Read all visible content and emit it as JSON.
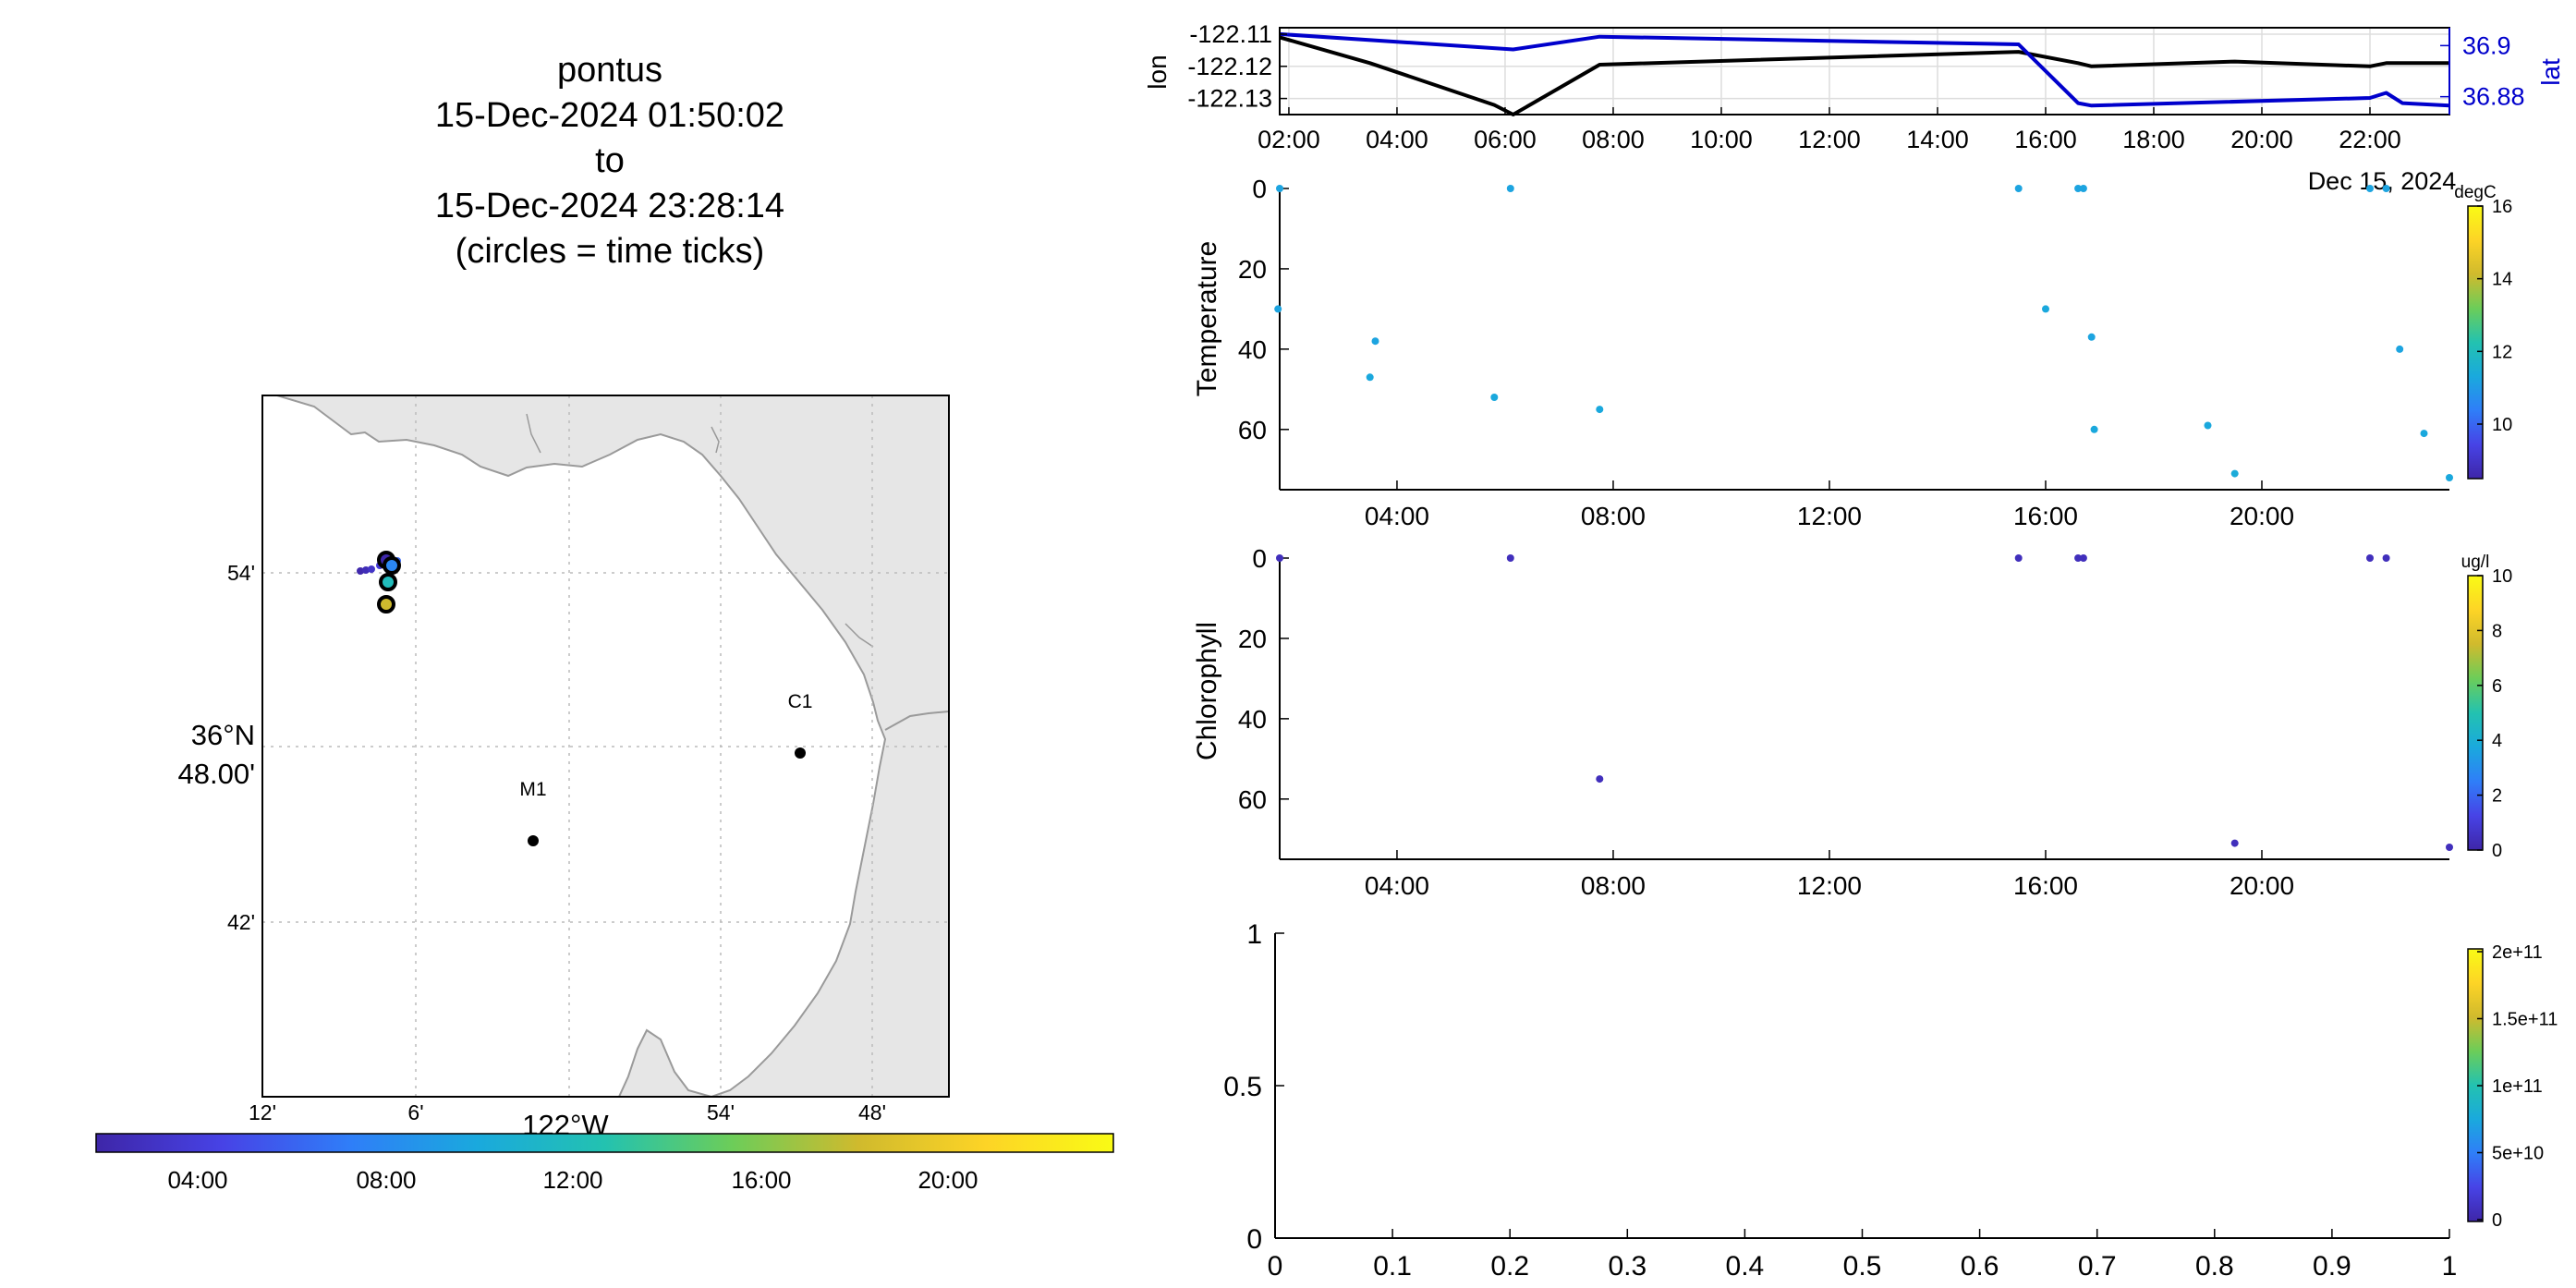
{
  "title_lines": [
    "pontus",
    "15-Dec-2024 01:50:02",
    "to",
    "15-Dec-2024 23:28:14",
    "(circles = time ticks)"
  ],
  "colors": {
    "lon_line": "#000000",
    "lat_line": "#0000cc",
    "land": "#e6e6e6",
    "coast": "#9a9a9a",
    "grid": "#bcbcbc"
  },
  "colormap": [
    "#3e26a8",
    "#4743e6",
    "#2f7ef8",
    "#1aa9dd",
    "#23c2b0",
    "#6ccd59",
    "#d0ba2d",
    "#fdd426",
    "#f9fb15"
  ],
  "map": {
    "x_tick_labels": [
      "12'",
      "6'",
      "54'",
      "48'"
    ],
    "y_tick_labels": [
      "54'",
      "42'"
    ],
    "center_lat_label": [
      "36°N",
      "48.00'"
    ],
    "center_lon_label": "122°W",
    "stations": [
      {
        "name": "C1"
      },
      {
        "name": "M1"
      }
    ],
    "time_colorbar_labels": [
      "04:00",
      "08:00",
      "12:00",
      "16:00",
      "20:00"
    ]
  },
  "chart_data": [
    {
      "type": "line",
      "x_tick_labels": [
        "02:00",
        "04:00",
        "06:00",
        "08:00",
        "10:00",
        "12:00",
        "14:00",
        "16:00",
        "18:00",
        "20:00",
        "22:00"
      ],
      "date_label": "Dec 15, 2024",
      "ylabel": "lon",
      "ylabel_right": "lat",
      "ylim": [
        -122.135,
        -122.108
      ],
      "ylim_right": [
        36.873,
        36.907
      ],
      "y_ticks": [
        -122.11,
        -122.12,
        -122.13
      ],
      "y_ticks_right": [
        36.9,
        36.88
      ],
      "series": [
        {
          "name": "lon",
          "axis": "left",
          "x": [
            1.83,
            3.5,
            5.8,
            6.15,
            7.75,
            15.5,
            16.6,
            16.85,
            19.5,
            22.0,
            22.3,
            23.47
          ],
          "y": [
            -122.111,
            -122.119,
            -122.132,
            -122.135,
            -122.1195,
            -122.1155,
            -122.119,
            -122.12,
            -122.1185,
            -122.12,
            -122.119,
            -122.119
          ]
        },
        {
          "name": "lat",
          "axis": "right",
          "x": [
            1.83,
            6.15,
            7.75,
            15.5,
            16.6,
            16.85,
            22.0,
            22.3,
            22.6,
            23.47
          ],
          "y": [
            36.9045,
            36.8985,
            36.9035,
            36.9005,
            36.8775,
            36.8765,
            36.8795,
            36.8815,
            36.8775,
            36.8765
          ]
        }
      ]
    },
    {
      "type": "scatter",
      "ylabel": "Temperature",
      "ylim": [
        0,
        75
      ],
      "y_ticks": [
        0,
        20,
        40,
        60
      ],
      "x_tick_labels": [
        "04:00",
        "08:00",
        "12:00",
        "16:00",
        "20:00"
      ],
      "colorbar": {
        "unit": "degC",
        "range": [
          8.5,
          16
        ],
        "tick_labels": [
          "16",
          "14",
          "12",
          "10"
        ],
        "tick_values": [
          16,
          14,
          12,
          10
        ]
      },
      "points": [
        {
          "x": 1.83,
          "y": 0,
          "c": 11.2
        },
        {
          "x": 1.8,
          "y": 30,
          "c": 11.2
        },
        {
          "x": 3.5,
          "y": 47,
          "c": 11.3
        },
        {
          "x": 3.6,
          "y": 38,
          "c": 11.2
        },
        {
          "x": 5.8,
          "y": 52,
          "c": 11.3
        },
        {
          "x": 6.1,
          "y": 0,
          "c": 11.2
        },
        {
          "x": 7.75,
          "y": 55,
          "c": 11.3
        },
        {
          "x": 15.5,
          "y": 0,
          "c": 11.2
        },
        {
          "x": 16.0,
          "y": 30,
          "c": 11.3
        },
        {
          "x": 16.6,
          "y": 0,
          "c": 11.2
        },
        {
          "x": 16.7,
          "y": 0,
          "c": 11.2
        },
        {
          "x": 16.85,
          "y": 37,
          "c": 11.2
        },
        {
          "x": 16.9,
          "y": 60,
          "c": 11.3
        },
        {
          "x": 19.0,
          "y": 59,
          "c": 11.3
        },
        {
          "x": 19.5,
          "y": 71,
          "c": 11.4
        },
        {
          "x": 22.0,
          "y": 0,
          "c": 11.2
        },
        {
          "x": 22.3,
          "y": 0,
          "c": 11.2
        },
        {
          "x": 22.55,
          "y": 40,
          "c": 11.2
        },
        {
          "x": 23.0,
          "y": 61,
          "c": 11.3
        },
        {
          "x": 23.47,
          "y": 72,
          "c": 11.3
        }
      ]
    },
    {
      "type": "scatter",
      "ylabel": "Chlorophyll",
      "ylim": [
        0,
        75
      ],
      "y_ticks": [
        0,
        20,
        40,
        60
      ],
      "x_tick_labels": [
        "04:00",
        "08:00",
        "12:00",
        "16:00",
        "20:00"
      ],
      "colorbar": {
        "unit": "ug/l",
        "range": [
          0,
          10
        ],
        "tick_labels": [
          "10",
          "8",
          "6",
          "4",
          "2",
          "0"
        ],
        "tick_values": [
          10,
          8,
          6,
          4,
          2,
          0
        ]
      },
      "points": [
        {
          "x": 1.83,
          "y": 0,
          "c": 0.4
        },
        {
          "x": 6.1,
          "y": 0,
          "c": 0.4
        },
        {
          "x": 7.75,
          "y": 55,
          "c": 0.4
        },
        {
          "x": 15.5,
          "y": 0,
          "c": 0.4
        },
        {
          "x": 16.6,
          "y": 0,
          "c": 0.4
        },
        {
          "x": 16.7,
          "y": 0,
          "c": 0.4
        },
        {
          "x": 19.5,
          "y": 71,
          "c": 0.4
        },
        {
          "x": 22.0,
          "y": 0,
          "c": 0.4
        },
        {
          "x": 22.3,
          "y": 0,
          "c": 0.4
        },
        {
          "x": 23.47,
          "y": 72,
          "c": 0.4
        }
      ]
    },
    {
      "type": "scatter",
      "xlim": [
        0,
        1
      ],
      "ylim": [
        0,
        1
      ],
      "x_tick_labels": [
        "0",
        "0.1",
        "0.2",
        "0.3",
        "0.4",
        "0.5",
        "0.6",
        "0.7",
        "0.8",
        "0.9",
        "1"
      ],
      "y_tick_labels": [
        "1",
        "0.5",
        "0"
      ],
      "colorbar": {
        "range": [
          0,
          200000000000
        ],
        "tick_labels": [
          "2e+11",
          "1.5e+11",
          "1e+11",
          "5e+10",
          "0"
        ]
      },
      "points": []
    }
  ]
}
